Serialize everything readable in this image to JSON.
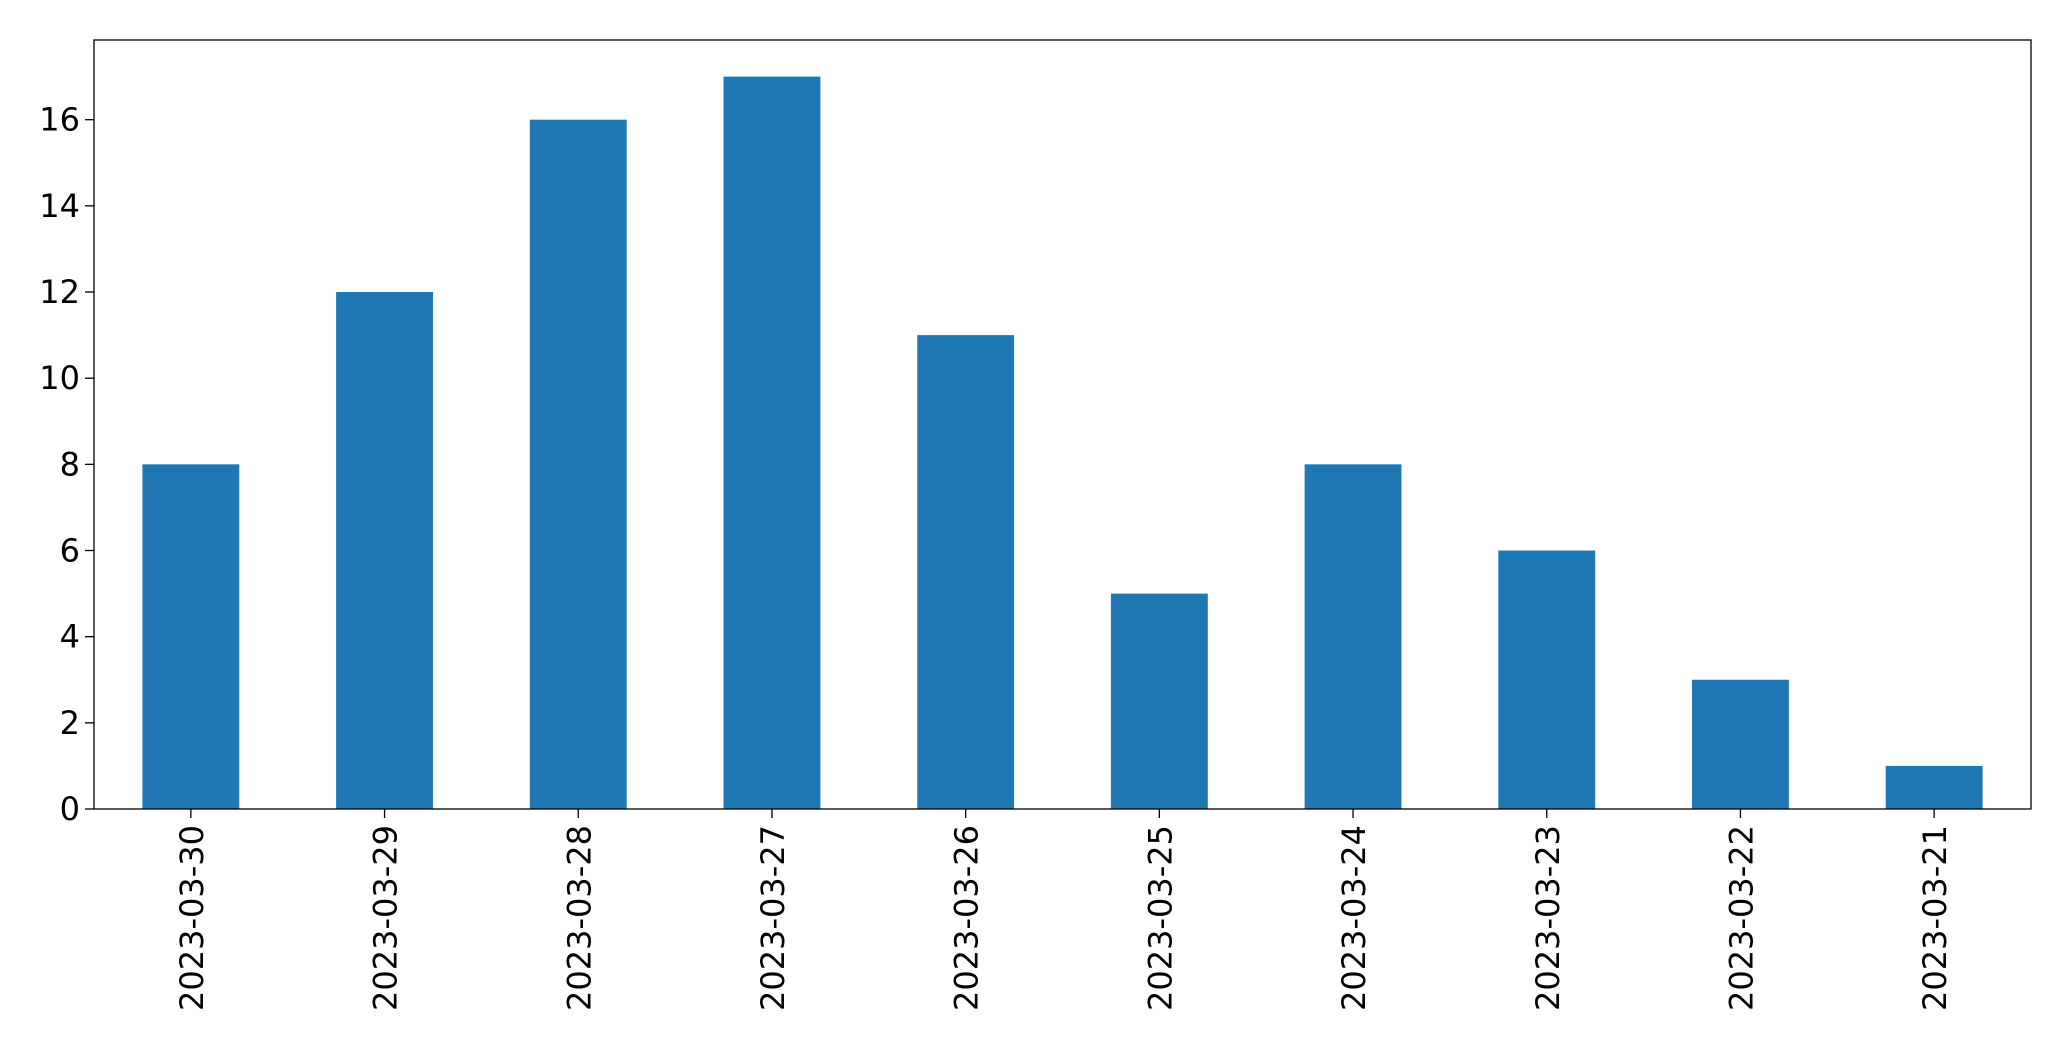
{
  "chart_data": {
    "type": "bar",
    "categories": [
      "2023-03-30",
      "2023-03-29",
      "2023-03-28",
      "2023-03-27",
      "2023-03-26",
      "2023-03-25",
      "2023-03-24",
      "2023-03-23",
      "2023-03-22",
      "2023-03-21"
    ],
    "values": [
      8,
      12,
      16,
      17,
      11,
      5,
      8,
      6,
      3,
      1
    ],
    "color": "#1f77b4",
    "ylim": [
      0,
      17.85
    ],
    "yticks": [
      0,
      2,
      4,
      6,
      8,
      10,
      12,
      14,
      16
    ],
    "grid": false
  }
}
